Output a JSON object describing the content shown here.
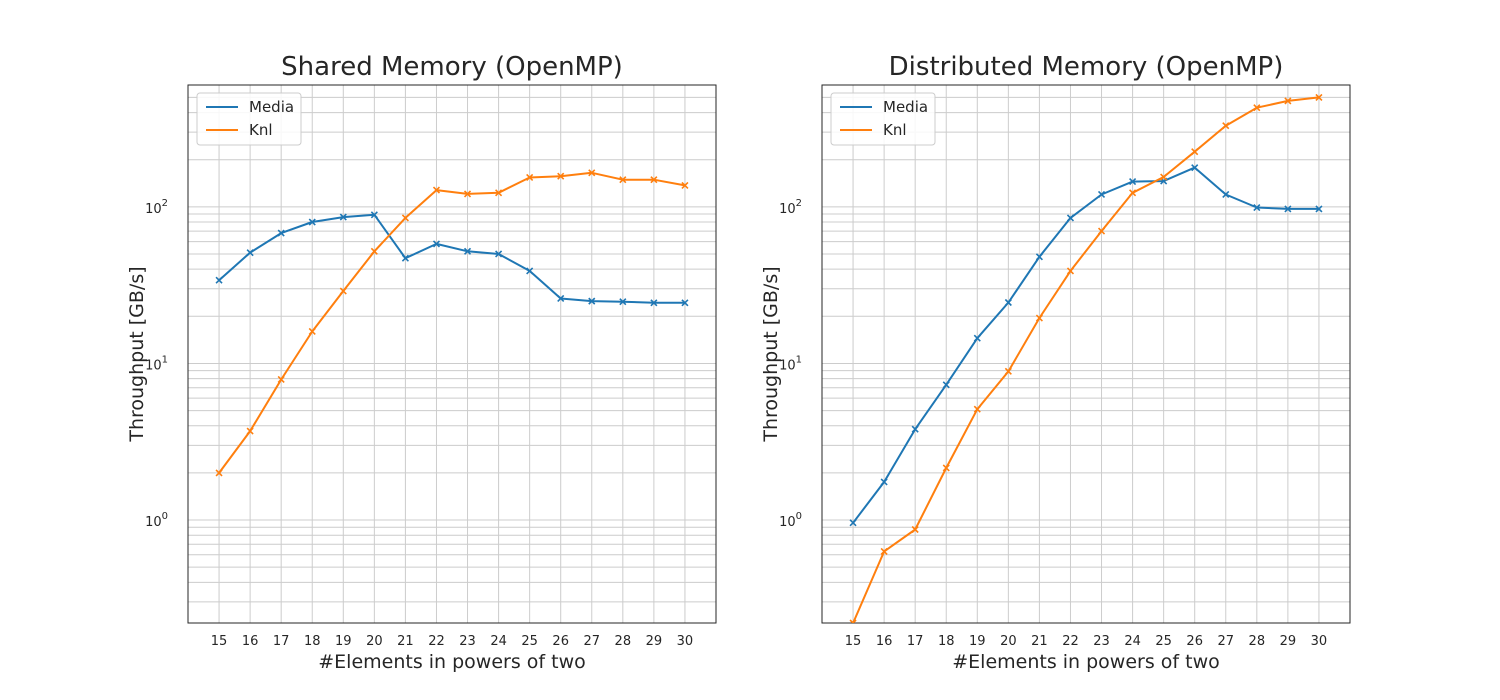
{
  "chart_data": [
    {
      "type": "line",
      "title": "Shared Memory (OpenMP)",
      "xlabel": "#Elements in powers of two",
      "ylabel": "Throughput [GB/s]",
      "x": [
        15,
        16,
        17,
        18,
        19,
        20,
        21,
        22,
        23,
        24,
        25,
        26,
        27,
        28,
        29,
        30
      ],
      "yscale": "log",
      "ylim": [
        0.22,
        600
      ],
      "xlim": [
        14,
        31
      ],
      "y_ticks": [
        {
          "value": 1,
          "base": "10",
          "exp": "0"
        },
        {
          "value": 10,
          "base": "10",
          "exp": "1"
        },
        {
          "value": 100,
          "base": "10",
          "exp": "2"
        }
      ],
      "grid": true,
      "legend_position": "upper-left",
      "marker": "x",
      "series": [
        {
          "name": "Media",
          "color": "#1f77b4",
          "values": [
            34,
            51,
            68,
            80,
            86,
            89,
            47,
            58,
            52,
            50,
            39,
            26,
            25,
            24.8,
            24.4,
            24.4
          ]
        },
        {
          "name": "Knl",
          "color": "#ff7f0e",
          "values": [
            2.0,
            3.7,
            7.9,
            16,
            29,
            52,
            85,
            128,
            121,
            123,
            154,
            157,
            165,
            149,
            149,
            137
          ]
        }
      ]
    },
    {
      "type": "line",
      "title": "Distributed Memory (OpenMP)",
      "xlabel": "#Elements in powers of two",
      "ylabel": "Throughput [GB/s]",
      "x": [
        15,
        16,
        17,
        18,
        19,
        20,
        21,
        22,
        23,
        24,
        25,
        26,
        27,
        28,
        29,
        30
      ],
      "yscale": "log",
      "ylim": [
        0.22,
        600
      ],
      "xlim": [
        14,
        31
      ],
      "y_ticks": [
        {
          "value": 1,
          "base": "10",
          "exp": "0"
        },
        {
          "value": 10,
          "base": "10",
          "exp": "1"
        },
        {
          "value": 100,
          "base": "10",
          "exp": "2"
        }
      ],
      "grid": true,
      "legend_position": "upper-left",
      "marker": "x",
      "series": [
        {
          "name": "Media",
          "color": "#1f77b4",
          "values": [
            0.96,
            1.75,
            3.8,
            7.3,
            14.5,
            24.5,
            48,
            85,
            120,
            145,
            146,
            178,
            120,
            99,
            97,
            97
          ]
        },
        {
          "name": "Knl",
          "color": "#ff7f0e",
          "values": [
            0.22,
            0.63,
            0.87,
            2.15,
            5.1,
            8.9,
            19.5,
            39,
            70,
            123,
            155,
            225,
            330,
            430,
            475,
            500
          ]
        }
      ]
    }
  ]
}
